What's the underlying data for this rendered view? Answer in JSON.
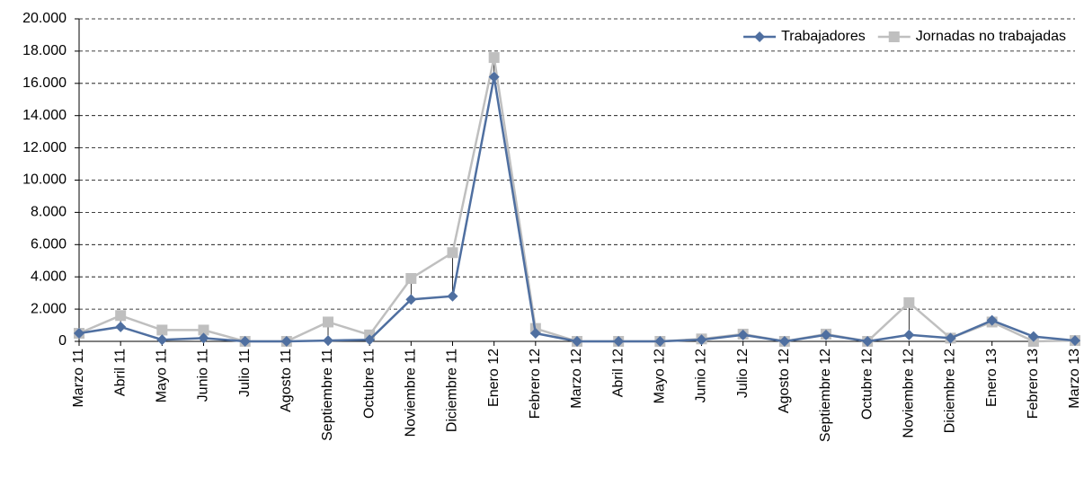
{
  "chart_data": {
    "type": "line",
    "categories": [
      "Marzo 11",
      "Abril 11",
      "Mayo 11",
      "Junio 11",
      "Julio 11",
      "Agosto 11",
      "Septiembre 11",
      "Octubre 11",
      "Noviembre 11",
      "Diciembre 11",
      "Enero 12",
      "Febrero 12",
      "Marzo 12",
      "Abril 12",
      "Mayo 12",
      "Junio 12",
      "Julio 12",
      "Agosto 12",
      "Septiembre 12",
      "Octubre 12",
      "Noviembre 12",
      "Diciembre 12",
      "Enero 13",
      "Febrero 13",
      "Marzo 13"
    ],
    "series": [
      {
        "name": "Trabajadores",
        "color": "#4f6fa0",
        "marker": "diamond",
        "values": [
          500,
          900,
          100,
          200,
          0,
          0,
          50,
          100,
          2600,
          2800,
          16400,
          500,
          0,
          0,
          0,
          100,
          400,
          0,
          400,
          0,
          400,
          200,
          1300,
          300,
          50
        ]
      },
      {
        "name": "Jornadas no trabajadas",
        "color": "#bfbfbf",
        "marker": "square",
        "values": [
          500,
          1600,
          700,
          700,
          0,
          0,
          1200,
          400,
          3900,
          5500,
          17600,
          800,
          0,
          0,
          0,
          150,
          450,
          0,
          450,
          0,
          2400,
          200,
          1200,
          0,
          50
        ]
      }
    ],
    "ylim": [
      0,
      20000
    ],
    "yticks": [
      0,
      {
        "value": 2000,
        "label": "2.000"
      },
      {
        "value": 4000,
        "label": "4.000"
      },
      {
        "value": 6000,
        "label": "6.000"
      },
      {
        "value": 8000,
        "label": "8.000"
      },
      {
        "value": 10000,
        "label": "10.000"
      },
      {
        "value": 12000,
        "label": "12.000"
      },
      {
        "value": 14000,
        "label": "14.000"
      },
      {
        "value": 16000,
        "label": "16.000"
      },
      {
        "value": 18000,
        "label": "18.000"
      },
      {
        "value": 20000,
        "label": "20.000"
      }
    ],
    "grid": true,
    "high_low_lines": true,
    "legend": "upper right"
  }
}
